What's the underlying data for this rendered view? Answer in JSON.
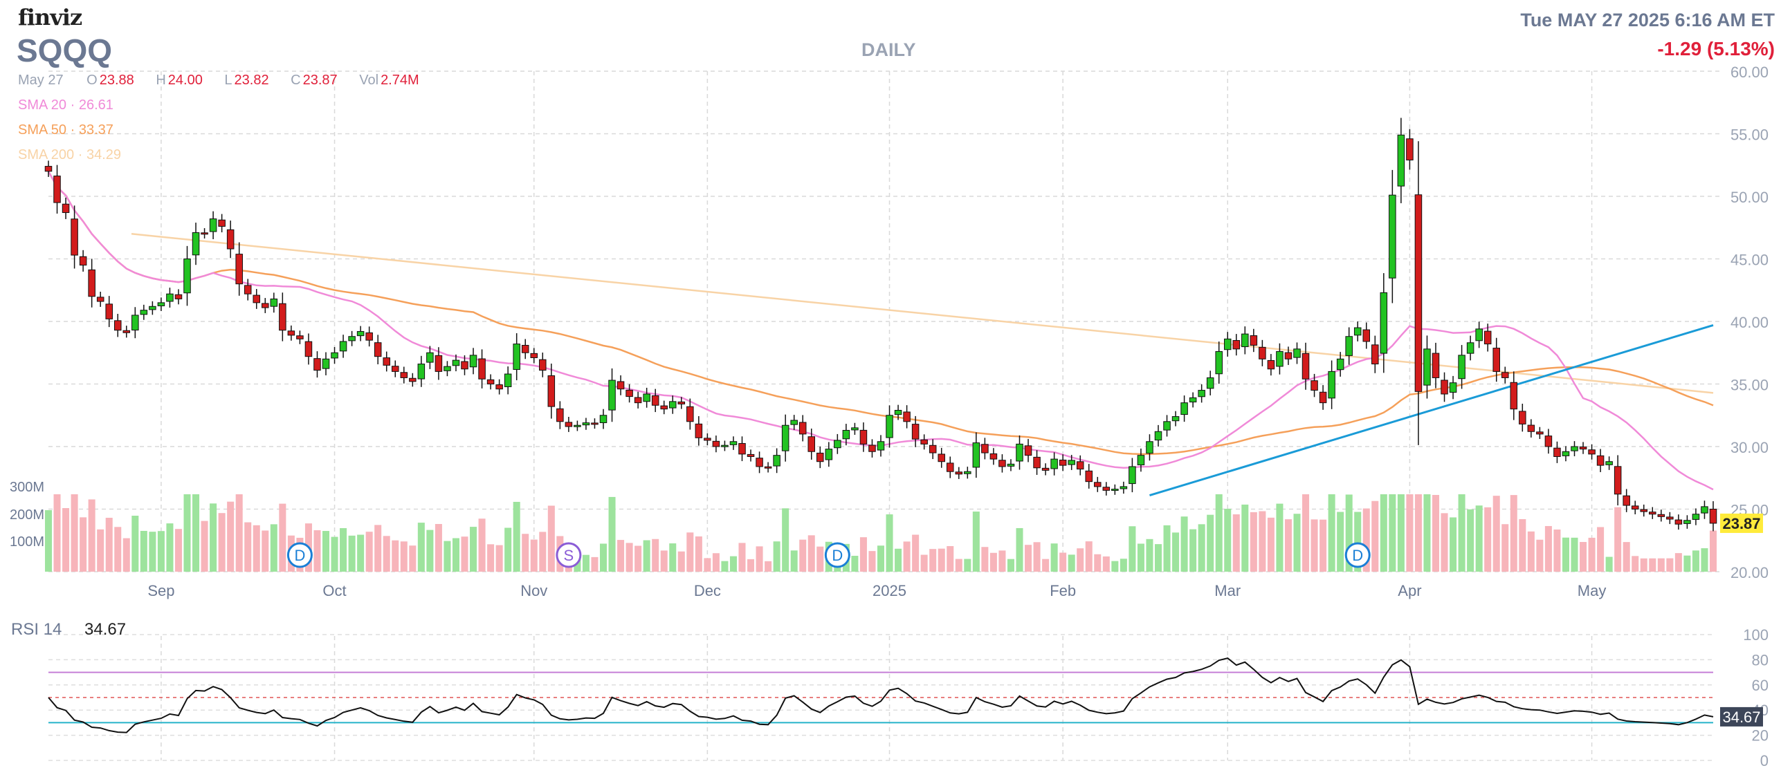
{
  "header": {
    "logo": "finviz",
    "ticker": "SQQQ",
    "timeframe": "DAILY",
    "datetime": "Tue MAY 27 2025 6:16 AM ET",
    "change": "-1.29 (5.13%)"
  },
  "ohlc": {
    "date": "May 27",
    "open_key": "O",
    "open": "23.88",
    "high_key": "H",
    "high": "24.00",
    "low_key": "L",
    "low": "23.82",
    "close_key": "C",
    "close": "23.87",
    "vol_key": "Vol",
    "vol": "2.74M"
  },
  "indicators": [
    {
      "label": "SMA 20",
      "value": "26.61",
      "color": "#f08ad8"
    },
    {
      "label": "SMA 50",
      "value": "33.37",
      "color": "#f5a05a"
    },
    {
      "label": "SMA 200",
      "value": "34.29",
      "color": "#f8d3a6"
    }
  ],
  "rsi": {
    "label": "RSI 14",
    "value": "34.67"
  },
  "colors": {
    "up": "#22c322",
    "down": "#d21c1c",
    "trendline": "#1a9bd7",
    "last_price_bg": "#ffeb3b",
    "rsi_badge_bg": "#3d4659"
  },
  "chart_data": {
    "type": "candlestick",
    "price_axis": {
      "ylim": [
        20,
        60
      ],
      "ticks": [
        "20.00",
        "25.00",
        "30.00",
        "35.00",
        "40.00",
        "45.00",
        "50.00",
        "55.00",
        "60.00"
      ],
      "last_price": "23.87"
    },
    "volume_axis": {
      "ticks": [
        "100M",
        "200M",
        "300M"
      ]
    },
    "x_labels": [
      {
        "label": "Sep",
        "date": "2024-09-03"
      },
      {
        "label": "Oct",
        "date": "2024-10-01"
      },
      {
        "label": "Nov",
        "date": "2024-11-01"
      },
      {
        "label": "Dec",
        "date": "2024-12-02"
      },
      {
        "label": "2025",
        "date": "2025-01-02"
      },
      {
        "label": "Feb",
        "date": "2025-02-03"
      },
      {
        "label": "Mar",
        "date": "2025-03-03"
      },
      {
        "label": "Apr",
        "date": "2025-04-01"
      },
      {
        "label": "May",
        "date": "2025-05-01"
      }
    ],
    "markers": [
      {
        "label": "D",
        "date": "2024-09-25",
        "color": "#1a7fd6"
      },
      {
        "label": "S",
        "date": "2024-11-07",
        "color": "#8a5cd6"
      },
      {
        "label": "D",
        "date": "2024-12-23",
        "color": "#1a7fd6"
      },
      {
        "label": "D",
        "date": "2025-03-24",
        "color": "#1a7fd6"
      }
    ],
    "trendline": {
      "from": {
        "date": "2025-02-18",
        "price": 26.1
      },
      "to": {
        "date": "2025-05-27",
        "price": 39.7
      }
    },
    "close": [
      52.0,
      49.5,
      48.7,
      45.3,
      44.5,
      42.0,
      41.6,
      40.2,
      39.3,
      39.1,
      40.5,
      40.9,
      41.2,
      41.5,
      42.2,
      41.8,
      45.0,
      47.1,
      47.0,
      48.2,
      47.6,
      45.8,
      43.0,
      42.2,
      41.5,
      41.1,
      41.8,
      39.3,
      38.9,
      38.6,
      37.2,
      36.1,
      37.0,
      37.5,
      38.4,
      38.8,
      39.2,
      38.5,
      37.2,
      36.5,
      36.0,
      35.5,
      35.2,
      36.6,
      37.5,
      36.0,
      36.4,
      36.9,
      36.2,
      37.3,
      35.4,
      35.0,
      34.6,
      35.8,
      38.2,
      37.5,
      37.1,
      36.1,
      33.2,
      32.0,
      31.6,
      31.7,
      31.9,
      31.8,
      32.5,
      35.3,
      34.6,
      34.0,
      33.5,
      34.2,
      33.3,
      33.0,
      33.6,
      33.4,
      32.0,
      30.7,
      30.5,
      30.0,
      30.1,
      30.4,
      29.4,
      29.2,
      28.4,
      28.3,
      29.3,
      31.7,
      32.1,
      31.0,
      29.6,
      28.8,
      29.8,
      30.5,
      31.3,
      31.5,
      30.2,
      29.6,
      30.4,
      32.5,
      32.9,
      32.0,
      30.6,
      30.2,
      29.5,
      28.8,
      28.0,
      27.8,
      28.0,
      30.3,
      29.5,
      29.0,
      28.4,
      28.6,
      30.2,
      29.3,
      28.3,
      28.1,
      29.0,
      28.5,
      28.9,
      28.2,
      27.2,
      26.8,
      26.5,
      26.6,
      26.8,
      28.4,
      29.3,
      30.4,
      31.2,
      32.0,
      32.4,
      33.5,
      33.9,
      34.5,
      35.5,
      37.6,
      38.6,
      37.8,
      39.0,
      38.1,
      37.0,
      36.2,
      37.6,
      37.0,
      37.8,
      35.4,
      34.5,
      33.5,
      36.0,
      37.0,
      38.8,
      39.5,
      38.4,
      36.6,
      42.3,
      50.1,
      54.9,
      52.9,
      34.4,
      37.8,
      35.5,
      34.2,
      35.1,
      37.3,
      38.3,
      39.4,
      38.2,
      36.0,
      35.5,
      33.0,
      31.8,
      31.2,
      31.0,
      30.0,
      29.2,
      29.6,
      30.0,
      29.8,
      29.4,
      28.5,
      28.8,
      26.2,
      25.3,
      25.0,
      24.8,
      24.6,
      24.4,
      24.2,
      23.8,
      24.1,
      24.6,
      25.2,
      23.87
    ],
    "sma20_labels": "SMA 20",
    "sma200_endpoints": [
      {
        "date": "2024-08-14",
        "price": 47.0
      },
      {
        "date": "2025-05-27",
        "price": 34.29
      }
    ],
    "volume_note": "relative bars, green on up days, pink on down days"
  }
}
